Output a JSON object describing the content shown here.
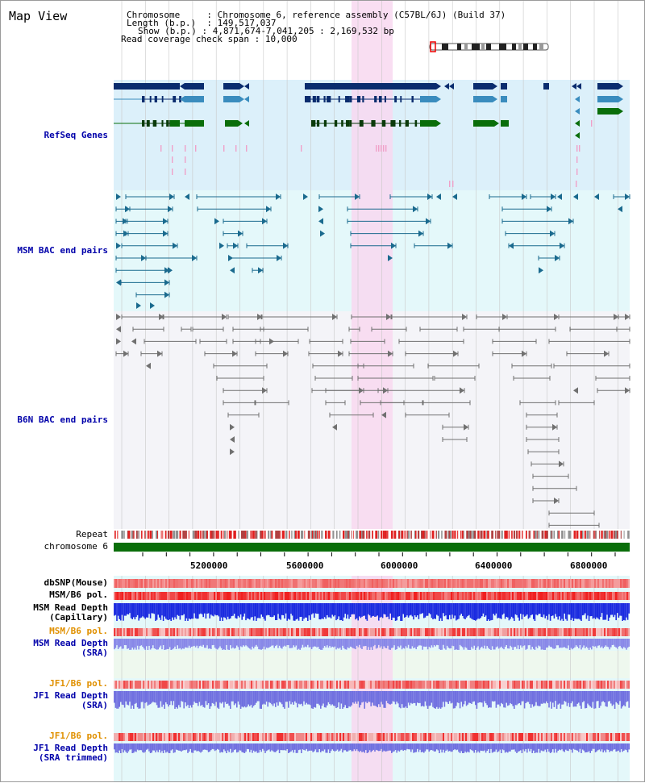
{
  "title": "Map View",
  "header": {
    "chromosome_key": "Chromosome",
    "chromosome_val": "Chromosome 6, reference assembly (C57BL/6J) (Build 37)",
    "length_key": "Length (b.p.)",
    "length_val": "149,517,037",
    "show_key": "Show (b.p.)",
    "show_val": "4,871,674-7,041,205 : 2,169,532 bp",
    "coverage_key": "Read coverage check span",
    "coverage_val": "10,000"
  },
  "tracks": {
    "refseq": "RefSeq Genes",
    "msm_bac": "MSM BAC end pairs",
    "b6n_bac": "B6N BAC end pairs",
    "repeat": "Repeat",
    "chromosome": "chromosome 6",
    "dbsnp": "dbSNP(Mouse)",
    "msm_b6_pol": "MSM/B6 pol.",
    "msm_depth_cap": "MSM Read Depth\n(Capillary)",
    "msm_b6_pol_sra": "MSM/B6 pol.",
    "msm_depth_sra": "MSM Read Depth\n(SRA)",
    "jf1_pol": "JF1/B6 pol.",
    "jf1_depth": "JF1 Read Depth\n(SRA)",
    "jf1_pol2": "JF1/B6 pol.",
    "jf1_depth_trim": "JF1 Read Depth\n(SRA trimmed)"
  },
  "axis_ticks": [
    "5200000",
    "5600000",
    "6000000",
    "6400000",
    "6800000"
  ],
  "colors": {
    "refseq_bg": "#dcf0fa",
    "msm_bg": "#e4f8fa",
    "b6n_bg": "#f4f4f8",
    "highlight": "#f8d8f0",
    "chromosome_bar": "#0a6e0a",
    "label_blue": "#0000aa",
    "label_orange": "#e09000"
  }
}
